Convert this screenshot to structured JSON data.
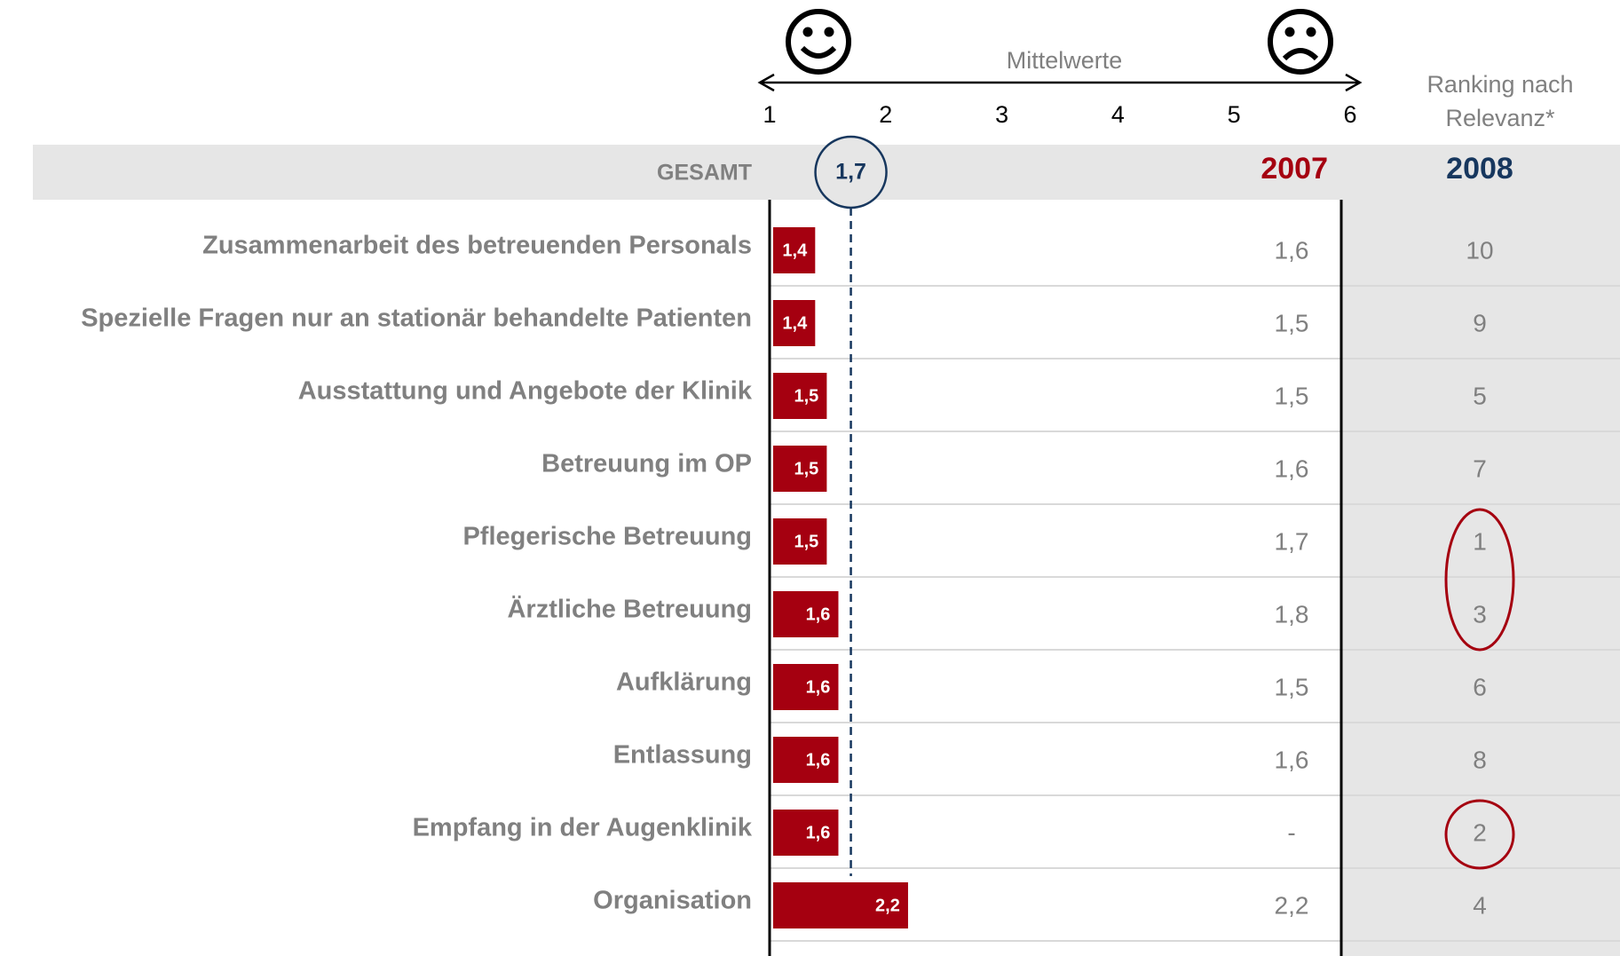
{
  "chart_data": {
    "type": "bar",
    "orientation": "horizontal",
    "axis_label": "Mittelwerte",
    "xlim": [
      1,
      6
    ],
    "xticks": [
      1,
      2,
      3,
      4,
      5,
      6
    ],
    "total_label": "GESAMT",
    "total_value": 1.7,
    "total_value_label": "1,7",
    "previous_year": "2007",
    "current_year": "2008",
    "ranking_title": [
      "Ranking nach",
      "Relevanz*"
    ],
    "categories": [
      "Zusammenarbeit des betreuenden Personals",
      "Spezielle Fragen nur an stationär behandelte Patienten",
      "Ausstattung und Angebote der Klinik",
      "Betreuung im OP",
      "Pflegerische Betreuung",
      "Ärztliche Betreuung",
      "Aufklärung",
      "Entlassung",
      "Empfang in der Augenklinik",
      "Organisation"
    ],
    "values": [
      1.4,
      1.4,
      1.5,
      1.5,
      1.5,
      1.6,
      1.6,
      1.6,
      1.6,
      2.2
    ],
    "value_labels": [
      "1,4",
      "1,4",
      "1,5",
      "1,5",
      "1,5",
      "1,6",
      "1,6",
      "1,6",
      "1,6",
      "2,2"
    ],
    "color": "#a50010",
    "values_2007": [
      1.6,
      1.5,
      1.5,
      1.6,
      1.7,
      1.8,
      1.5,
      1.6,
      null,
      2.2
    ],
    "values_2007_labels": [
      "1,6",
      "1,5",
      "1,5",
      "1,6",
      "1,7",
      "1,8",
      "1,5",
      "1,6",
      "-",
      "2,2"
    ],
    "ranking": [
      10,
      9,
      5,
      7,
      1,
      3,
      6,
      8,
      2,
      4
    ],
    "highlighted_rows": [
      [
        4,
        5
      ],
      [
        8
      ]
    ]
  }
}
